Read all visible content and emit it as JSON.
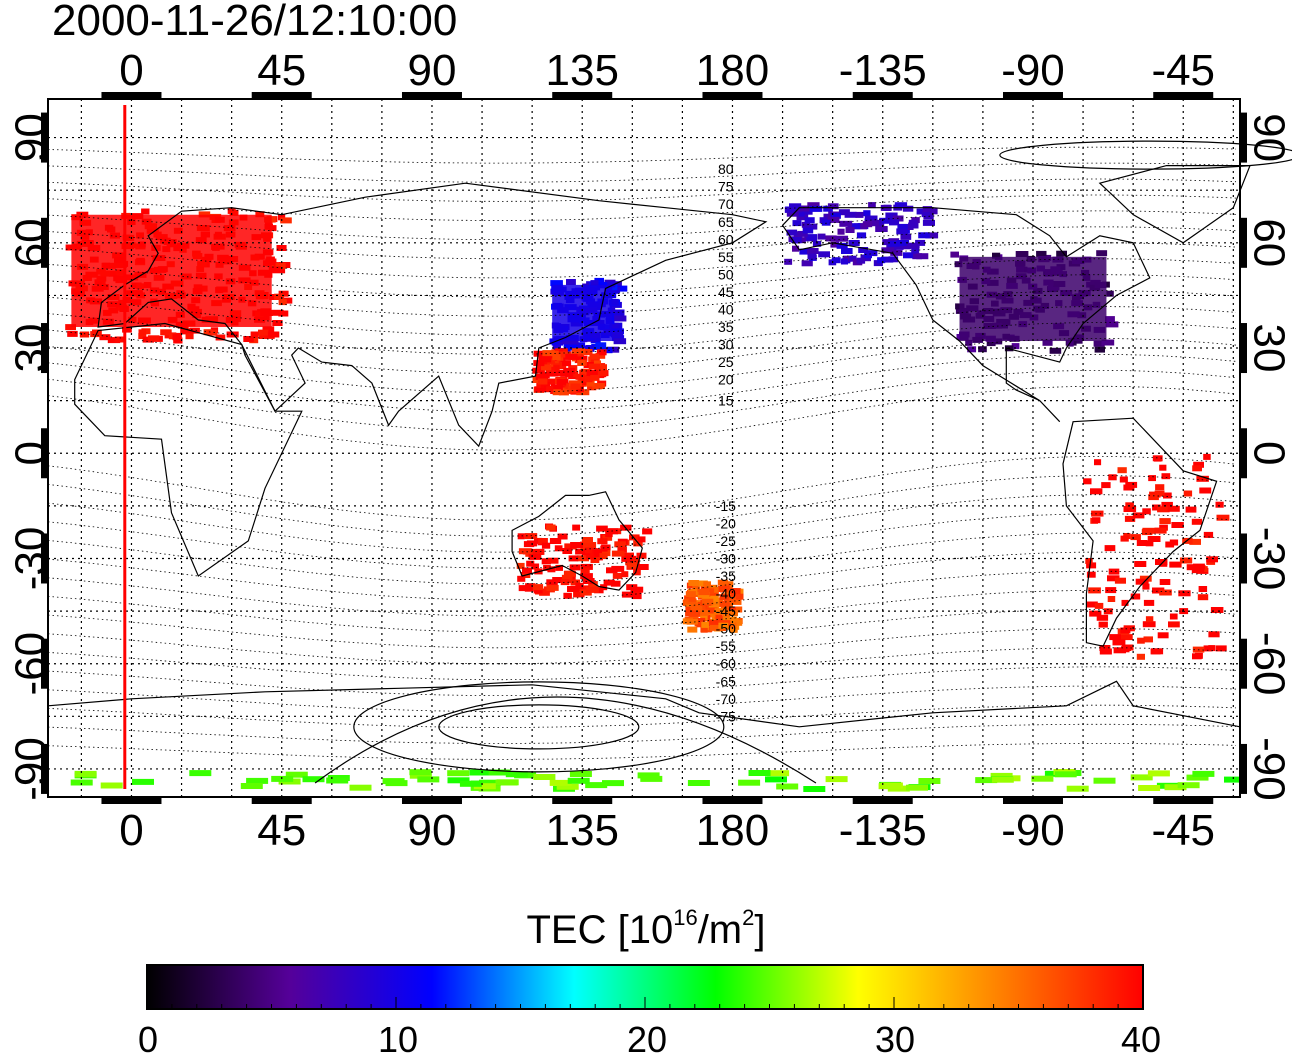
{
  "title": "2000-11-26/12:10:00",
  "map": {
    "x_ticks": [
      "0",
      "45",
      "90",
      "135",
      "180",
      "-135",
      "-90",
      "-45"
    ],
    "y_ticks": [
      "90",
      "60",
      "30",
      "0",
      "-30",
      "-60",
      "-90"
    ],
    "lon_values": [
      0,
      45,
      90,
      135,
      180,
      225,
      270,
      315
    ],
    "lat_values": [
      90,
      60,
      30,
      0,
      -30,
      -60,
      -90
    ],
    "lon_range": [
      -25,
      332
    ],
    "lat_range": [
      -98,
      101
    ],
    "contour_labels": [
      "80",
      "75",
      "70",
      "65",
      "60",
      "55",
      "50",
      "45",
      "40",
      "35",
      "30",
      "25",
      "20",
      "15",
      "-15",
      "-20",
      "-25",
      "-30",
      "-35",
      "-40",
      "-45",
      "-50",
      "-55",
      "-60",
      "-65",
      "-70",
      "-75"
    ],
    "contour_label_lats": [
      81,
      76,
      71,
      66,
      61,
      56,
      51,
      46,
      41,
      36,
      31,
      26,
      21,
      15,
      -15,
      -20,
      -25,
      -30,
      -35,
      -40,
      -45,
      -50,
      -55,
      -60,
      -65,
      -70,
      -75
    ],
    "contour_label_lon": 178,
    "terminator_lon": -2,
    "terminator_color": "#ff0000",
    "tec_regions": [
      {
        "region": "europe",
        "value": 40,
        "lon": [
          -20,
          45
        ],
        "lat": [
          33,
          70
        ]
      },
      {
        "region": "east-asia-north",
        "value": 10,
        "lon": [
          125,
          145
        ],
        "lat": [
          30,
          50
        ]
      },
      {
        "region": "east-asia-south",
        "value": 39,
        "lon": [
          120,
          140
        ],
        "lat": [
          18,
          30
        ]
      },
      {
        "region": "north-america",
        "value": 4,
        "lon": [
          245,
          292
        ],
        "lat": [
          30,
          58
        ]
      },
      {
        "region": "alaska",
        "value": 8,
        "lon": [
          195,
          238
        ],
        "lat": [
          55,
          72
        ]
      },
      {
        "region": "south-america",
        "value": 40,
        "lon": [
          285,
          325
        ],
        "lat": [
          -58,
          0
        ]
      },
      {
        "region": "australia",
        "value": 40,
        "lon": [
          115,
          153
        ],
        "lat": [
          -40,
          -20
        ]
      },
      {
        "region": "new-zealand",
        "value": 36,
        "lon": [
          165,
          180
        ],
        "lat": [
          -50,
          -36
        ]
      },
      {
        "region": "antarctic-coast",
        "value": 25,
        "lon": [
          -20,
          330
        ],
        "lat": [
          -95,
          -90
        ]
      }
    ]
  },
  "colorbar": {
    "label_main": "TEC  [10",
    "label_exp1": "16",
    "label_mid": "/m",
    "label_exp2": "2",
    "label_end": "]",
    "ticks": [
      "0",
      "10",
      "20",
      "30",
      "40"
    ],
    "min": 0,
    "max": 40,
    "colors": [
      "#000000",
      "#550099",
      "#0000ff",
      "#00ffff",
      "#00ff00",
      "#ffff00",
      "#ff8000",
      "#ff0000"
    ]
  }
}
